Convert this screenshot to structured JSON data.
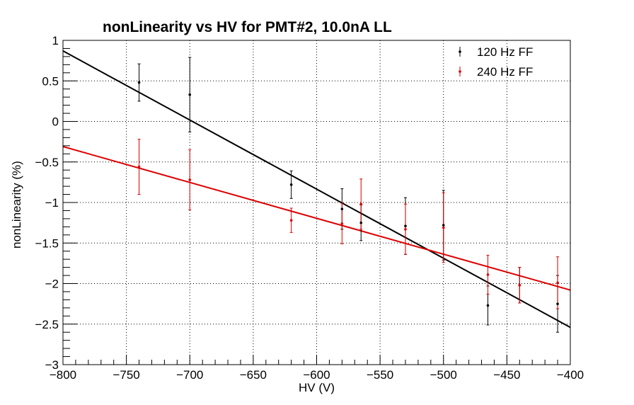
{
  "chart_data": {
    "type": "scatter",
    "title": "nonLinearity vs HV for PMT#2, 10.0nA LL",
    "xlabel": "HV (V)",
    "ylabel": "nonLinearity (%)",
    "xlim": [
      -800,
      -400
    ],
    "ylim": [
      -3,
      1
    ],
    "x_ticks": [
      -800,
      -750,
      -700,
      -650,
      -600,
      -550,
      -500,
      -450,
      -400
    ],
    "x_tick_labels": [
      "−800",
      "−750",
      "−700",
      "−650",
      "−600",
      "−550",
      "−500",
      "−450",
      "−400"
    ],
    "y_ticks": [
      -3,
      -2.5,
      -2,
      -1.5,
      -1,
      -0.5,
      0,
      0.5,
      1
    ],
    "y_tick_labels": [
      "−3",
      "−2.5",
      "−2",
      "−1.5",
      "−1",
      "−0.5",
      "0",
      "0.5",
      "1"
    ],
    "grid": true,
    "legend_position": "top-right",
    "series": [
      {
        "name": "120 Hz FF",
        "color": "#000000",
        "x": [
          -740,
          -700,
          -620,
          -580,
          -565,
          -530,
          -500,
          -465,
          -440,
          -410
        ],
        "y": [
          0.48,
          0.33,
          -0.78,
          -1.08,
          -1.25,
          -1.29,
          -1.28,
          -2.27,
          -2.02,
          -2.25
        ],
        "yerr": [
          0.23,
          0.46,
          0.17,
          0.25,
          0.22,
          0.35,
          0.43,
          0.24,
          0.22,
          0.35
        ],
        "fit": {
          "x": [
            -800,
            -400
          ],
          "y": [
            0.87,
            -2.54
          ]
        }
      },
      {
        "name": "240 Hz FF",
        "color": "#dd0000",
        "x": [
          -740,
          -700,
          -620,
          -580,
          -565,
          -530,
          -500,
          -465,
          -440,
          -410
        ],
        "y": [
          -0.56,
          -0.72,
          -1.22,
          -1.26,
          -1.02,
          -1.33,
          -1.31,
          -1.89,
          -2.02,
          -1.99
        ],
        "yerr": [
          0.34,
          0.37,
          0.15,
          0.25,
          0.31,
          0.31,
          0.43,
          0.24,
          0.22,
          0.32
        ],
        "fit": {
          "x": [
            -800,
            -400
          ],
          "y": [
            -0.31,
            -2.08
          ]
        }
      }
    ]
  }
}
